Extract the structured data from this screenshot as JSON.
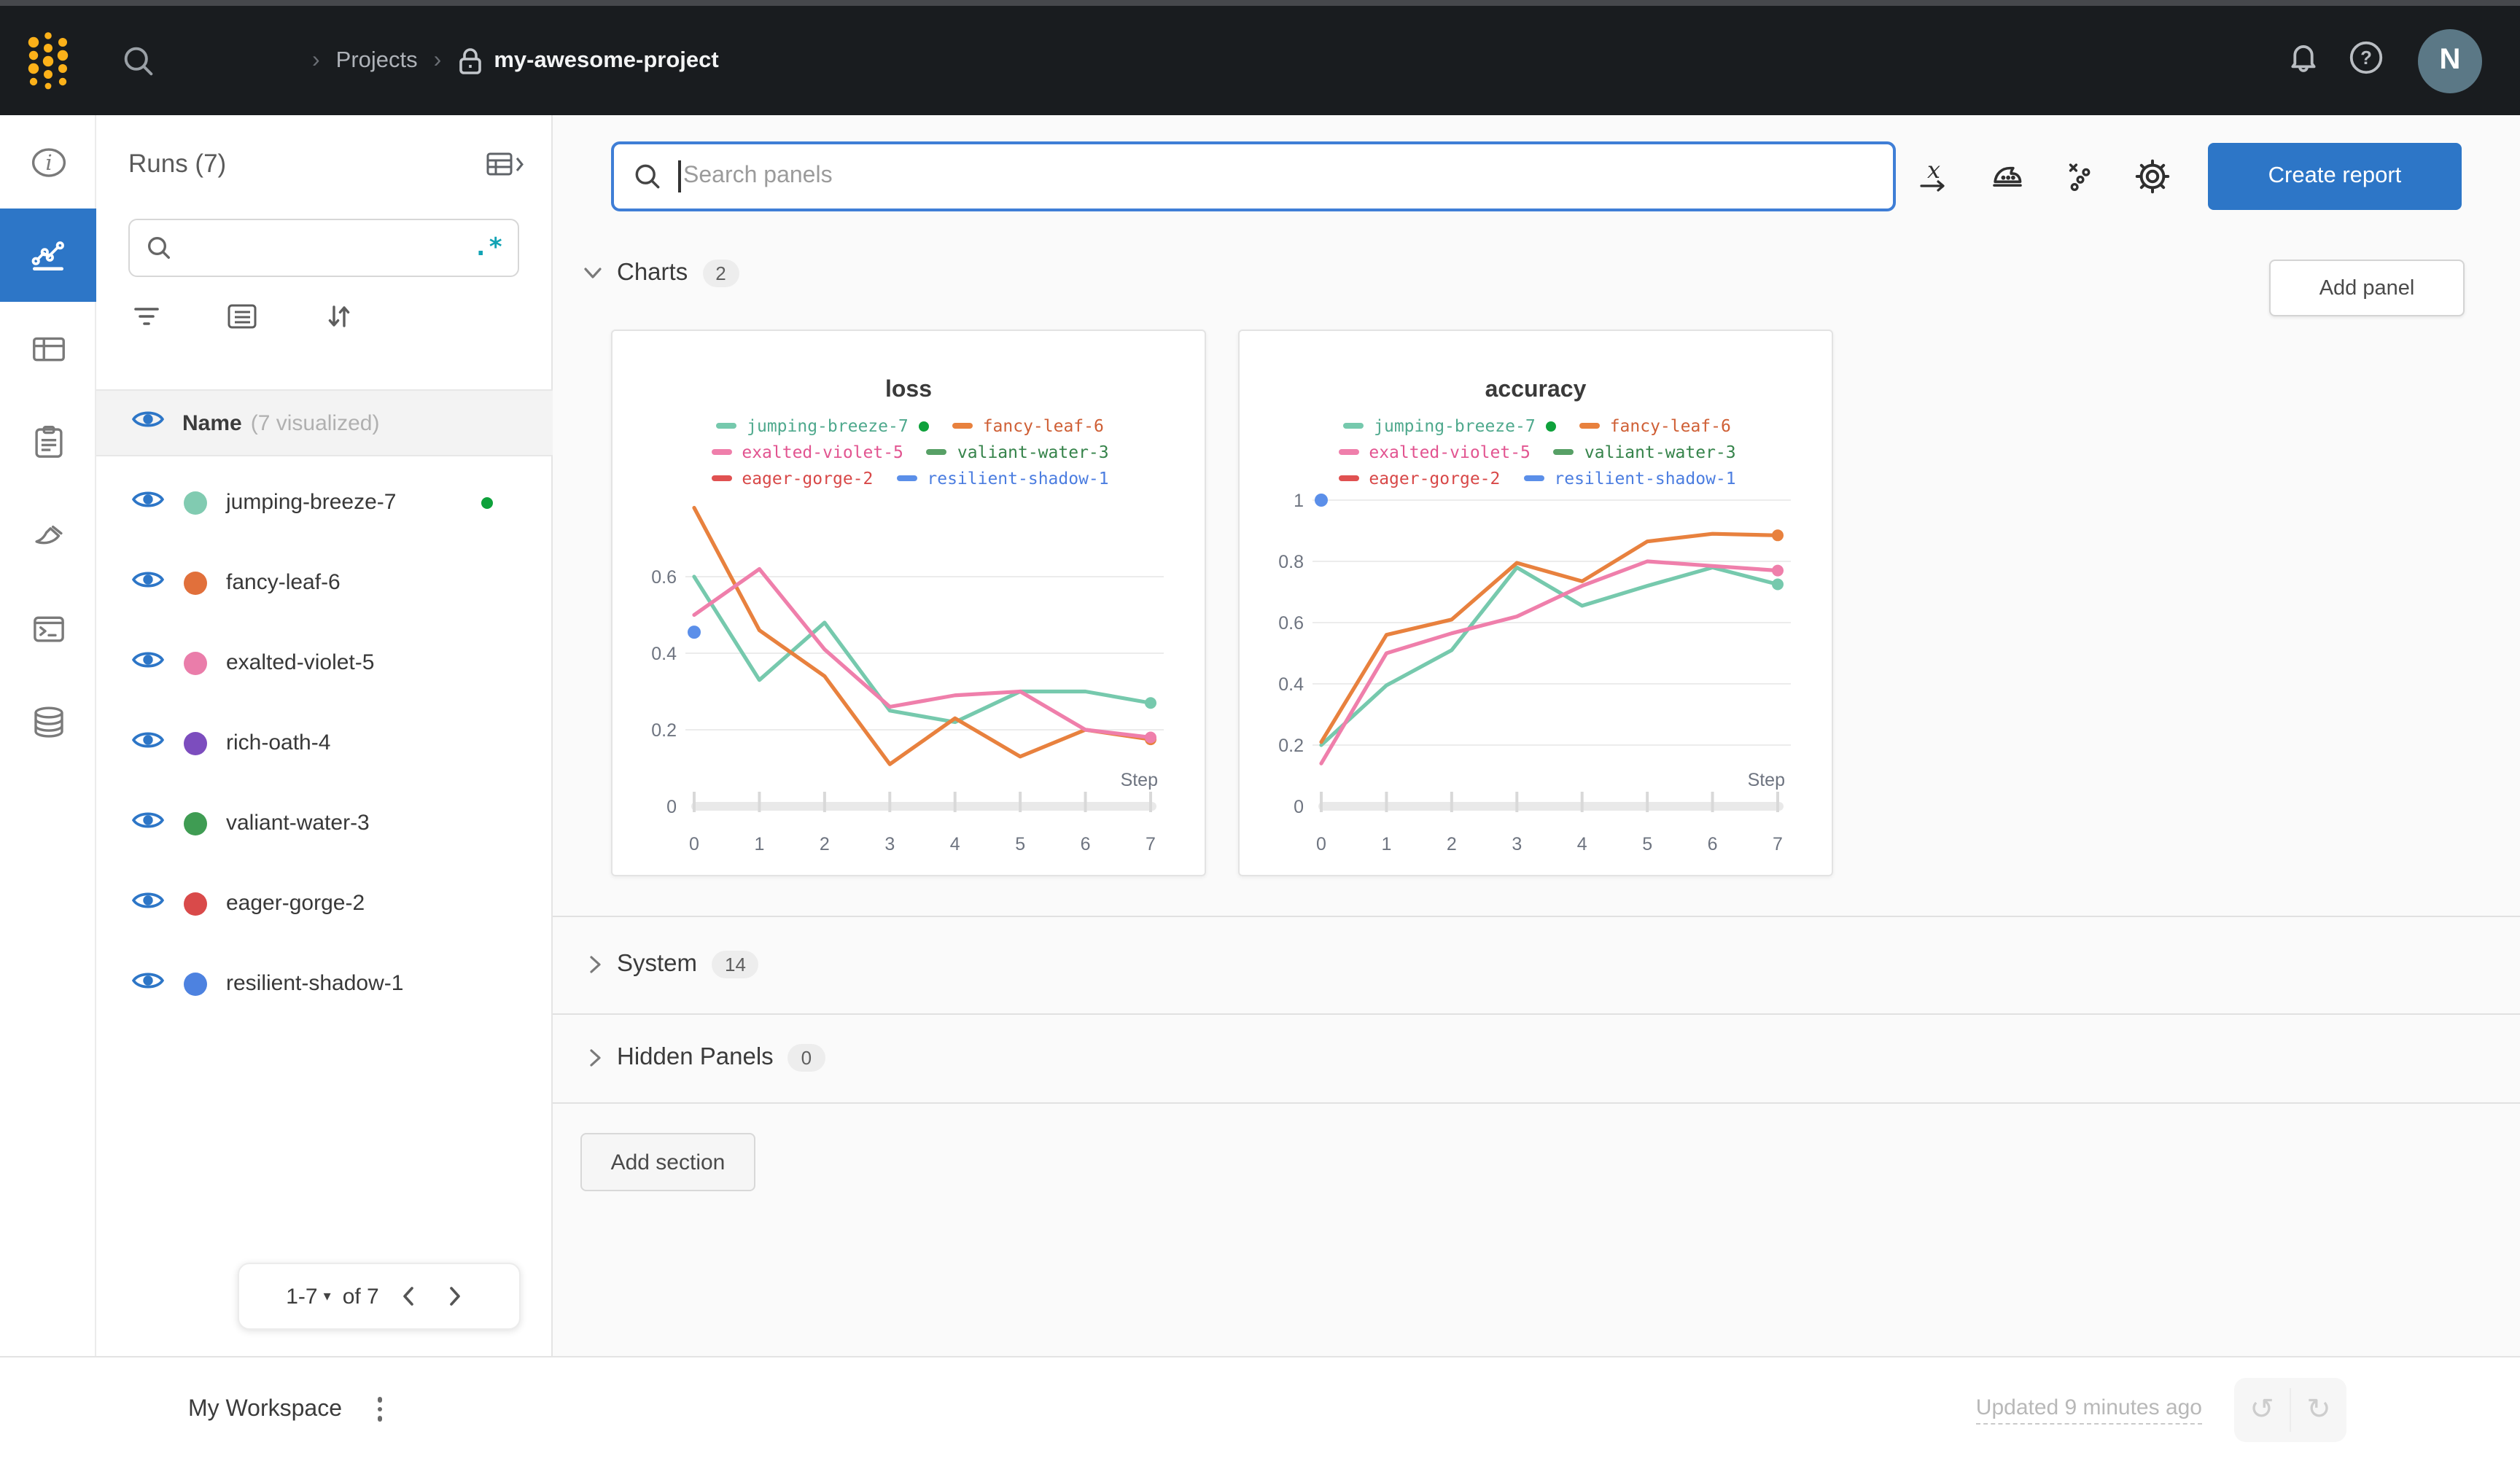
{
  "colors": {
    "accent_blue": "#2d76c7",
    "running_green": "#0ea13b",
    "navbar_bg": "#191c1f",
    "logo_yellow": "#fcb119",
    "avatar_bg": "#5b7886",
    "focus_border": "#3f7ed6"
  },
  "navbar": {
    "breadcrumb": {
      "separator": "›",
      "projects_label": "Projects",
      "project_name": "my-awesome-project"
    },
    "avatar_initial": "N"
  },
  "rail": {
    "items": [
      {
        "icon": "info-icon",
        "active": false
      },
      {
        "icon": "workspace-chart-icon",
        "active": true
      },
      {
        "icon": "tables-icon",
        "active": false
      },
      {
        "icon": "reports-icon",
        "active": false
      },
      {
        "icon": "sweeps-icon",
        "active": false
      },
      {
        "icon": "terminal-icon",
        "active": false
      },
      {
        "icon": "artifacts-icon",
        "active": false
      }
    ]
  },
  "runs_panel": {
    "title": "Runs (7)",
    "search_placeholder": "",
    "regex_glyph": ".*",
    "colhead": {
      "name_label": "Name",
      "visualized_label": "(7 visualized)"
    },
    "runs": [
      {
        "name": "jumping-breeze-7",
        "color": "#81cbb1",
        "running": true
      },
      {
        "name": "fancy-leaf-6",
        "color": "#e1703b",
        "running": false
      },
      {
        "name": "exalted-violet-5",
        "color": "#ea7daa",
        "running": false
      },
      {
        "name": "rich-oath-4",
        "color": "#7c4dbe",
        "running": false
      },
      {
        "name": "valiant-water-3",
        "color": "#3f9c53",
        "running": false
      },
      {
        "name": "eager-gorge-2",
        "color": "#d94a4a",
        "running": false
      },
      {
        "name": "resilient-shadow-1",
        "color": "#4d82e0",
        "running": false
      }
    ],
    "pagination": {
      "range_label": "1-7",
      "of_label": "of 7"
    }
  },
  "main": {
    "panel_search_placeholder": "Search panels",
    "create_report_label": "Create report",
    "add_panel_label": "Add panel",
    "add_section_label": "Add section",
    "sections": [
      {
        "label": "Charts",
        "count": "2"
      },
      {
        "label": "System",
        "count": "14"
      },
      {
        "label": "Hidden Panels",
        "count": "0"
      }
    ]
  },
  "footer": {
    "workspace_label": "My Workspace",
    "updated_label": "Updated 9 minutes ago"
  },
  "chart_data": [
    {
      "type": "line",
      "title": "loss",
      "xlabel": "Step",
      "x": [
        0,
        1,
        2,
        3,
        4,
        5,
        6,
        7
      ],
      "ylim": [
        0,
        0.8
      ],
      "yticks": [
        0,
        0.2,
        0.4,
        0.6
      ],
      "grid": true,
      "legend_position": "top",
      "series": [
        {
          "name": "jumping-breeze-7",
          "color": "#76c9ad",
          "text_color": "#4fa98d",
          "running": true,
          "end_dot": true,
          "values": [
            0.6,
            0.33,
            0.48,
            0.25,
            0.22,
            0.3,
            0.3,
            0.27
          ]
        },
        {
          "name": "fancy-leaf-6",
          "color": "#e8813e",
          "text_color": "#cf5f35",
          "end_dot": true,
          "values": [
            0.78,
            0.46,
            0.34,
            0.11,
            0.23,
            0.13,
            0.2,
            0.175
          ]
        },
        {
          "name": "exalted-violet-5",
          "color": "#ef7fab",
          "text_color": "#e25490",
          "end_dot": true,
          "values": [
            0.5,
            0.62,
            0.41,
            0.26,
            0.29,
            0.3,
            0.2,
            0.18
          ]
        },
        {
          "name": "valiant-water-3",
          "color": "#57a066",
          "text_color": "#35834a",
          "values": []
        },
        {
          "name": "eager-gorge-2",
          "color": "#e05151",
          "text_color": "#d84848",
          "values": []
        },
        {
          "name": "resilient-shadow-1",
          "color": "#5b8fe9",
          "text_color": "#4b7de0",
          "point_only": true,
          "values": [
            0.455
          ]
        }
      ]
    },
    {
      "type": "line",
      "title": "accuracy",
      "xlabel": "Step",
      "x": [
        0,
        1,
        2,
        3,
        4,
        5,
        6,
        7
      ],
      "ylim": [
        0,
        1.0
      ],
      "yticks": [
        0,
        0.2,
        0.4,
        0.6,
        0.8,
        1
      ],
      "grid": true,
      "legend_position": "top",
      "series": [
        {
          "name": "jumping-breeze-7",
          "color": "#76c9ad",
          "text_color": "#4fa98d",
          "running": true,
          "end_dot": true,
          "values": [
            0.2,
            0.395,
            0.51,
            0.78,
            0.655,
            0.72,
            0.78,
            0.725
          ]
        },
        {
          "name": "fancy-leaf-6",
          "color": "#e8813e",
          "text_color": "#cf5f35",
          "end_dot": true,
          "values": [
            0.21,
            0.56,
            0.61,
            0.795,
            0.735,
            0.865,
            0.89,
            0.885
          ]
        },
        {
          "name": "exalted-violet-5",
          "color": "#ef7fab",
          "text_color": "#e25490",
          "end_dot": true,
          "values": [
            0.14,
            0.5,
            0.565,
            0.62,
            0.72,
            0.8,
            0.785,
            0.77
          ]
        },
        {
          "name": "valiant-water-3",
          "color": "#57a066",
          "text_color": "#35834a",
          "values": []
        },
        {
          "name": "eager-gorge-2",
          "color": "#e05151",
          "text_color": "#d84848",
          "values": []
        },
        {
          "name": "resilient-shadow-1",
          "color": "#5b8fe9",
          "text_color": "#4b7de0",
          "point_only": true,
          "values": [
            1.0
          ]
        }
      ]
    }
  ]
}
